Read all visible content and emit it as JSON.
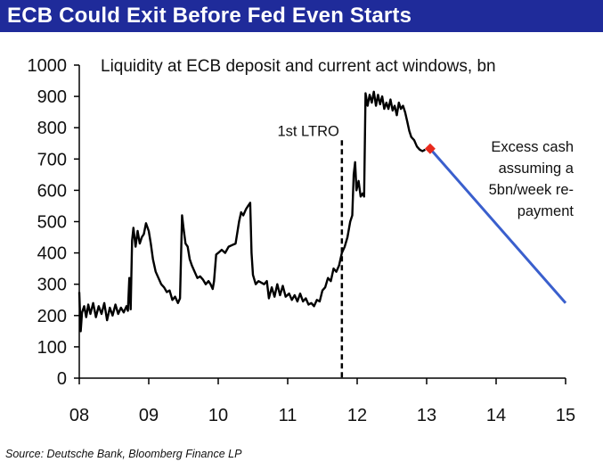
{
  "header": {
    "title": "ECB Could Exit Before Fed Even Starts",
    "title_bg": "#1f2b9a"
  },
  "source": "Source: Deutsche Bank, Bloomberg Finance LP",
  "chart_data": {
    "type": "line",
    "title": "Liquidity at ECB deposit and current act windows, bn",
    "xlabel": "",
    "ylabel": "",
    "xlim": [
      2008,
      2015
    ],
    "ylim": [
      0,
      1000
    ],
    "x_tick_labels": [
      "08",
      "09",
      "10",
      "11",
      "12",
      "13",
      "14",
      "15"
    ],
    "x_tick_values": [
      2008,
      2009,
      2010,
      2011,
      2012,
      2013,
      2014,
      2015
    ],
    "y_tick_labels": [
      "0",
      "100",
      "200",
      "300",
      "400",
      "500",
      "600",
      "700",
      "800",
      "900",
      "1000"
    ],
    "y_tick_values": [
      0,
      100,
      200,
      300,
      400,
      500,
      600,
      700,
      800,
      900,
      1000
    ],
    "grid": false,
    "series": [
      {
        "name": "",
        "color": "#000000",
        "points": [
          [
            2008.0,
            275
          ],
          [
            2008.02,
            150
          ],
          [
            2008.04,
            210
          ],
          [
            2008.07,
            230
          ],
          [
            2008.1,
            195
          ],
          [
            2008.13,
            235
          ],
          [
            2008.16,
            205
          ],
          [
            2008.2,
            240
          ],
          [
            2008.24,
            195
          ],
          [
            2008.28,
            230
          ],
          [
            2008.32,
            205
          ],
          [
            2008.36,
            240
          ],
          [
            2008.4,
            185
          ],
          [
            2008.44,
            225
          ],
          [
            2008.48,
            200
          ],
          [
            2008.52,
            235
          ],
          [
            2008.56,
            205
          ],
          [
            2008.6,
            225
          ],
          [
            2008.64,
            210
          ],
          [
            2008.68,
            230
          ],
          [
            2008.7,
            215
          ],
          [
            2008.72,
            320
          ],
          [
            2008.74,
            220
          ],
          [
            2008.76,
            440
          ],
          [
            2008.78,
            480
          ],
          [
            2008.81,
            420
          ],
          [
            2008.84,
            470
          ],
          [
            2008.87,
            430
          ],
          [
            2008.9,
            450
          ],
          [
            2008.93,
            460
          ],
          [
            2008.96,
            495
          ],
          [
            2009.0,
            470
          ],
          [
            2009.03,
            430
          ],
          [
            2009.06,
            380
          ],
          [
            2009.1,
            340
          ],
          [
            2009.14,
            320
          ],
          [
            2009.18,
            300
          ],
          [
            2009.22,
            290
          ],
          [
            2009.26,
            275
          ],
          [
            2009.3,
            280
          ],
          [
            2009.34,
            250
          ],
          [
            2009.38,
            260
          ],
          [
            2009.42,
            240
          ],
          [
            2009.45,
            255
          ],
          [
            2009.48,
            520
          ],
          [
            2009.5,
            480
          ],
          [
            2009.53,
            430
          ],
          [
            2009.56,
            420
          ],
          [
            2009.59,
            380
          ],
          [
            2009.62,
            360
          ],
          [
            2009.66,
            340
          ],
          [
            2009.7,
            320
          ],
          [
            2009.74,
            325
          ],
          [
            2009.78,
            315
          ],
          [
            2009.82,
            300
          ],
          [
            2009.86,
            310
          ],
          [
            2009.89,
            300
          ],
          [
            2009.92,
            285
          ],
          [
            2009.94,
            310
          ],
          [
            2009.97,
            395
          ],
          [
            2010.0,
            400
          ],
          [
            2010.05,
            410
          ],
          [
            2010.1,
            400
          ],
          [
            2010.15,
            420
          ],
          [
            2010.2,
            425
          ],
          [
            2010.25,
            430
          ],
          [
            2010.3,
            500
          ],
          [
            2010.33,
            530
          ],
          [
            2010.36,
            520
          ],
          [
            2010.4,
            540
          ],
          [
            2010.43,
            550
          ],
          [
            2010.46,
            560
          ],
          [
            2010.48,
            400
          ],
          [
            2010.5,
            330
          ],
          [
            2010.54,
            300
          ],
          [
            2010.58,
            310
          ],
          [
            2010.62,
            305
          ],
          [
            2010.66,
            300
          ],
          [
            2010.7,
            310
          ],
          [
            2010.73,
            255
          ],
          [
            2010.77,
            290
          ],
          [
            2010.81,
            260
          ],
          [
            2010.85,
            300
          ],
          [
            2010.89,
            265
          ],
          [
            2010.93,
            295
          ],
          [
            2010.97,
            260
          ],
          [
            2011.02,
            270
          ],
          [
            2011.06,
            250
          ],
          [
            2011.1,
            265
          ],
          [
            2011.14,
            245
          ],
          [
            2011.18,
            270
          ],
          [
            2011.22,
            245
          ],
          [
            2011.26,
            255
          ],
          [
            2011.3,
            235
          ],
          [
            2011.34,
            240
          ],
          [
            2011.38,
            230
          ],
          [
            2011.42,
            250
          ],
          [
            2011.46,
            245
          ],
          [
            2011.5,
            280
          ],
          [
            2011.54,
            290
          ],
          [
            2011.58,
            320
          ],
          [
            2011.62,
            310
          ],
          [
            2011.66,
            350
          ],
          [
            2011.7,
            340
          ],
          [
            2011.74,
            360
          ],
          [
            2011.78,
            400
          ],
          [
            2011.82,
            420
          ],
          [
            2011.86,
            450
          ],
          [
            2011.9,
            500
          ],
          [
            2011.93,
            520
          ],
          [
            2011.95,
            650
          ],
          [
            2011.97,
            690
          ],
          [
            2011.99,
            600
          ],
          [
            2012.02,
            630
          ],
          [
            2012.05,
            580
          ],
          [
            2012.08,
            590
          ],
          [
            2012.1,
            580
          ],
          [
            2012.12,
            910
          ],
          [
            2012.15,
            870
          ],
          [
            2012.18,
            905
          ],
          [
            2012.21,
            880
          ],
          [
            2012.24,
            915
          ],
          [
            2012.27,
            870
          ],
          [
            2012.3,
            905
          ],
          [
            2012.33,
            875
          ],
          [
            2012.36,
            900
          ],
          [
            2012.39,
            860
          ],
          [
            2012.42,
            880
          ],
          [
            2012.45,
            860
          ],
          [
            2012.48,
            890
          ],
          [
            2012.51,
            855
          ],
          [
            2012.54,
            870
          ],
          [
            2012.57,
            840
          ],
          [
            2012.6,
            880
          ],
          [
            2012.63,
            860
          ],
          [
            2012.66,
            870
          ],
          [
            2012.69,
            850
          ],
          [
            2012.72,
            820
          ],
          [
            2012.75,
            790
          ],
          [
            2012.78,
            770
          ],
          [
            2012.82,
            760
          ],
          [
            2012.86,
            740
          ],
          [
            2012.9,
            730
          ],
          [
            2012.94,
            725
          ],
          [
            2012.98,
            730
          ]
        ]
      },
      {
        "name": "",
        "color": "#3a5fcd",
        "points": [
          [
            2013.05,
            733
          ],
          [
            2015.0,
            240
          ]
        ]
      }
    ],
    "marker": {
      "x": 2013.05,
      "y": 733,
      "color": "#e8291c",
      "shape": "diamond"
    },
    "vline": {
      "x": 2011.78,
      "label": "1st LTRO",
      "style": "dashed"
    },
    "annotation": {
      "lines": [
        "Excess cash",
        "assuming a",
        "5bn/week re-",
        "payment"
      ],
      "anchor": "end"
    }
  }
}
